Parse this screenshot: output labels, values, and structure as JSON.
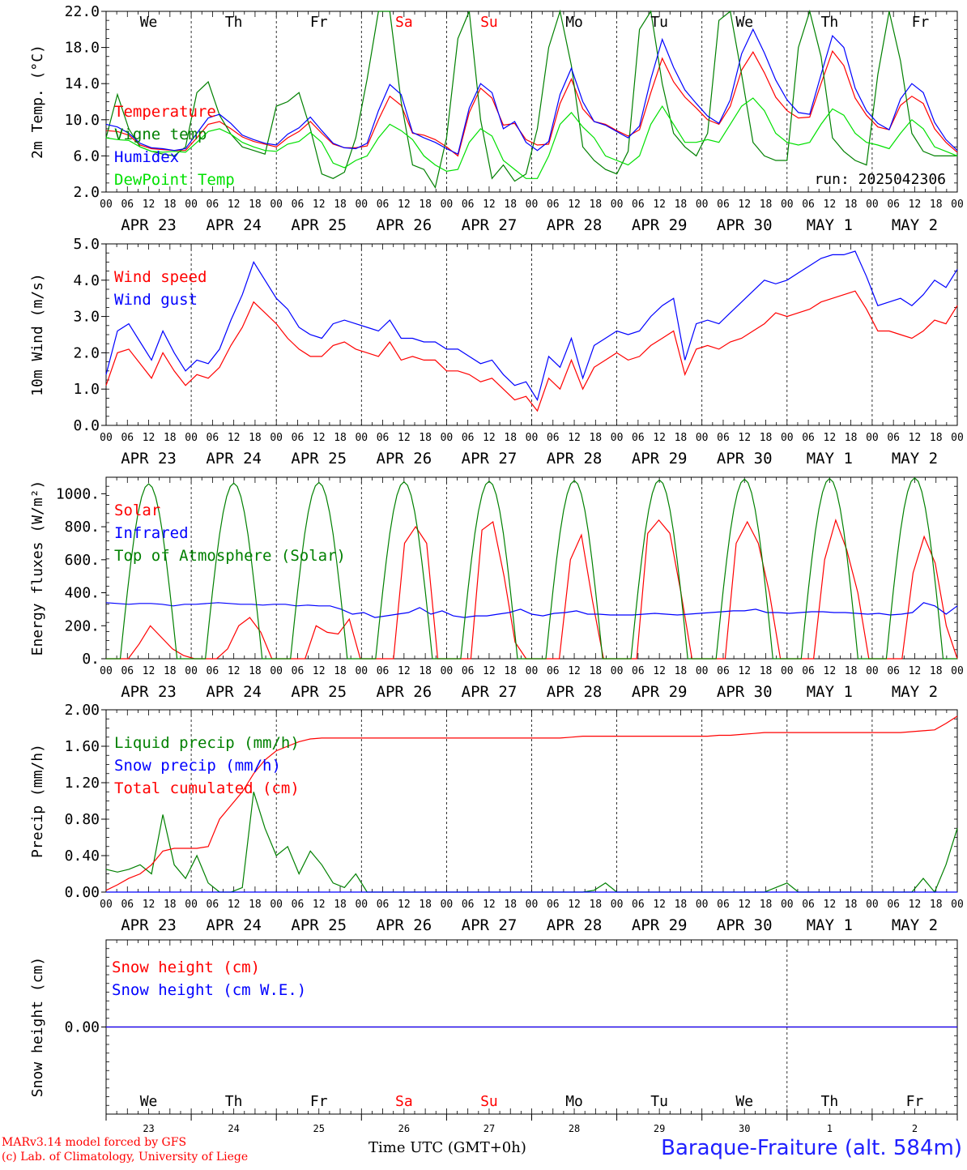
{
  "run_label": "run: 2025042306",
  "day_labels": [
    "We",
    "Th",
    "Fr",
    "Sa",
    "Su",
    "Mo",
    "Tu",
    "We",
    "Th",
    "Fr"
  ],
  "weekend_days": [
    "Sa",
    "Su"
  ],
  "hour_ticks": [
    "00",
    "06",
    "12",
    "18"
  ],
  "date_labels": [
    "APR 23",
    "APR 24",
    "APR 25",
    "APR 26",
    "APR 27",
    "APR 28",
    "APR 29",
    "APR 30",
    "MAY  1",
    "MAY  2"
  ],
  "bottom_day_numbers": [
    "23",
    "24",
    "25",
    "26",
    "27",
    "28",
    "29",
    "30",
    "1",
    "2"
  ],
  "footer": {
    "line1": "MARv3.14 model forced by GFS",
    "line2": "(c) Lab. of Climatology, University of Liege",
    "time_axis": "Time UTC (GMT+0h)",
    "station": "Baraque-Fraiture (alt. 584m)"
  },
  "colors": {
    "red": "#ff0000",
    "blue": "#0000ff",
    "green": "#008000",
    "lightgreen": "#00e000",
    "darkgreen": "#228b22"
  },
  "chart_data": [
    {
      "type": "line",
      "ylabel": "2m Temp. (°C)",
      "ylim": [
        2.0,
        22.0
      ],
      "yticks": [
        "2.0",
        "6.0",
        "10.0",
        "14.0",
        "18.0",
        "22.0"
      ],
      "x_unit": "hours since APR 23 00 UTC, 3-hourly",
      "series": [
        {
          "name": "Temperature",
          "color": "#ff0000",
          "values": [
            8.8,
            8.7,
            8.3,
            7.2,
            6.8,
            6.7,
            6.6,
            6.6,
            8.0,
            9.5,
            9.8,
            9.0,
            8.1,
            7.6,
            7.3,
            7.0,
            8.0,
            8.7,
            9.8,
            8.5,
            7.3,
            6.9,
            6.9,
            7.1,
            10.0,
            12.6,
            11.6,
            8.5,
            8.3,
            7.8,
            7.0,
            6.0,
            10.8,
            13.5,
            12.4,
            9.4,
            9.6,
            7.8,
            7.2,
            7.3,
            11.8,
            14.5,
            11.2,
            9.8,
            9.5,
            8.8,
            8.2,
            8.9,
            13.0,
            16.8,
            14.2,
            12.5,
            11.3,
            10.0,
            9.5,
            11.5,
            15.5,
            17.5,
            15.2,
            12.5,
            11.0,
            10.2,
            10.3,
            14.0,
            17.6,
            16.0,
            12.4,
            10.5,
            9.2,
            8.9,
            11.6,
            12.6,
            11.8,
            9.0,
            7.5,
            6.4
          ]
        },
        {
          "name": "Vigne temp",
          "color": "#008000",
          "values": [
            8.0,
            12.8,
            9.0,
            7.0,
            6.5,
            6.2,
            6.0,
            7.0,
            13.0,
            14.2,
            10.5,
            8.4,
            7.0,
            6.6,
            6.2,
            11.5,
            12.0,
            13.0,
            9.0,
            4.0,
            3.5,
            4.2,
            8.0,
            14.5,
            22.0,
            22.0,
            12.0,
            5.0,
            4.5,
            2.5,
            8.0,
            19.0,
            22.0,
            10.0,
            3.5,
            5.0,
            3.2,
            4.0,
            9.0,
            18.0,
            22.0,
            16.0,
            7.0,
            5.5,
            4.5,
            4.0,
            6.5,
            20.0,
            22.0,
            14.0,
            8.5,
            7.0,
            6.0,
            8.5,
            21.0,
            22.0,
            15.0,
            7.5,
            6.0,
            5.5,
            5.5,
            18.0,
            22.0,
            17.0,
            8.0,
            6.5,
            5.5,
            5.0,
            15.0,
            22.0,
            16.5,
            8.5,
            6.5,
            6.0,
            6.0,
            6.0
          ]
        },
        {
          "name": "Humidex",
          "color": "#0000ff",
          "values": [
            9.5,
            9.2,
            8.5,
            7.4,
            6.9,
            6.8,
            6.6,
            6.8,
            8.5,
            10.2,
            10.6,
            9.6,
            8.3,
            7.8,
            7.4,
            7.2,
            8.4,
            9.1,
            10.3,
            8.8,
            7.4,
            6.9,
            6.8,
            7.4,
            11.0,
            13.9,
            12.8,
            8.6,
            8.0,
            7.5,
            6.8,
            6.2,
            11.3,
            14.0,
            13.0,
            9.0,
            9.8,
            7.5,
            6.6,
            7.6,
            12.8,
            15.7,
            12.0,
            9.8,
            9.4,
            8.7,
            8.0,
            9.3,
            14.5,
            18.9,
            15.8,
            13.3,
            11.8,
            10.4,
            9.6,
            12.2,
            17.3,
            20.0,
            17.4,
            14.4,
            12.2,
            10.8,
            10.6,
            15.0,
            19.3,
            18.0,
            13.5,
            11.0,
            9.6,
            8.9,
            12.3,
            14.0,
            13.0,
            9.7,
            7.8,
            6.6
          ]
        },
        {
          "name": "DewPoint Temp",
          "color": "#00e000",
          "values": [
            8.0,
            7.8,
            7.7,
            7.0,
            6.5,
            6.4,
            6.5,
            6.4,
            7.5,
            8.7,
            9.0,
            8.4,
            7.5,
            7.0,
            6.6,
            6.5,
            7.3,
            7.6,
            8.6,
            7.5,
            5.2,
            4.7,
            5.5,
            6.0,
            8.0,
            9.5,
            8.8,
            7.8,
            6.0,
            5.0,
            4.3,
            4.5,
            7.5,
            9.0,
            8.2,
            5.5,
            4.5,
            3.5,
            3.5,
            6.0,
            9.5,
            10.8,
            9.2,
            8.0,
            6.0,
            5.5,
            5.0,
            6.0,
            9.5,
            11.5,
            9.5,
            7.5,
            7.5,
            7.8,
            7.5,
            9.5,
            11.5,
            12.4,
            11.0,
            8.5,
            7.5,
            7.2,
            7.5,
            9.5,
            11.2,
            10.5,
            8.5,
            7.5,
            7.2,
            6.8,
            8.5,
            10.0,
            9.0,
            7.0,
            6.5,
            6.0
          ]
        }
      ]
    },
    {
      "type": "line",
      "ylabel": "10m Wind (m/s)",
      "ylim": [
        0.0,
        5.0
      ],
      "yticks": [
        "0.0",
        "1.0",
        "2.0",
        "3.0",
        "4.0",
        "5.0"
      ],
      "series": [
        {
          "name": "Wind speed",
          "color": "#ff0000",
          "values": [
            1.1,
            2.0,
            2.1,
            1.7,
            1.3,
            2.0,
            1.5,
            1.1,
            1.4,
            1.3,
            1.6,
            2.2,
            2.7,
            3.4,
            3.1,
            2.8,
            2.4,
            2.1,
            1.9,
            1.9,
            2.2,
            2.3,
            2.1,
            2.0,
            1.9,
            2.3,
            1.8,
            1.9,
            1.8,
            1.8,
            1.5,
            1.5,
            1.4,
            1.2,
            1.3,
            1.0,
            0.7,
            0.8,
            0.4,
            1.3,
            1.0,
            1.8,
            1.0,
            1.6,
            1.8,
            2.0,
            1.8,
            1.9,
            2.2,
            2.4,
            2.6,
            1.4,
            2.1,
            2.2,
            2.1,
            2.3,
            2.4,
            2.6,
            2.8,
            3.1,
            3.0,
            3.1,
            3.2,
            3.4,
            3.5,
            3.6,
            3.7,
            3.2,
            2.6,
            2.6,
            2.5,
            2.4,
            2.6,
            2.9,
            2.8,
            3.3
          ]
        },
        {
          "name": "Wind gust",
          "color": "#0000ff",
          "values": [
            1.4,
            2.6,
            2.8,
            2.3,
            1.8,
            2.6,
            2.0,
            1.5,
            1.8,
            1.7,
            2.1,
            2.9,
            3.6,
            4.5,
            4.0,
            3.5,
            3.2,
            2.7,
            2.5,
            2.4,
            2.8,
            2.9,
            2.8,
            2.7,
            2.6,
            2.9,
            2.4,
            2.4,
            2.3,
            2.3,
            2.1,
            2.1,
            1.9,
            1.7,
            1.8,
            1.4,
            1.1,
            1.2,
            0.7,
            1.9,
            1.6,
            2.4,
            1.3,
            2.2,
            2.4,
            2.6,
            2.5,
            2.6,
            3.0,
            3.3,
            3.5,
            1.8,
            2.8,
            2.9,
            2.8,
            3.1,
            3.4,
            3.7,
            4.0,
            3.9,
            4.0,
            4.2,
            4.4,
            4.6,
            4.7,
            4.7,
            4.8,
            4.1,
            3.3,
            3.4,
            3.5,
            3.3,
            3.6,
            4.0,
            3.8,
            4.3
          ]
        }
      ]
    },
    {
      "type": "line",
      "ylabel": "Energy fluxes (W/m²)",
      "ylim": [
        0,
        1100
      ],
      "yticks": [
        "0.",
        "200.",
        "400.",
        "600.",
        "800.",
        "1000."
      ],
      "series": [
        {
          "name": "Solar",
          "color": "#ff0000",
          "values": [
            0,
            0,
            0,
            90,
            200,
            130,
            60,
            20,
            0,
            0,
            0,
            60,
            200,
            250,
            160,
            0,
            0,
            0,
            0,
            200,
            160,
            150,
            240,
            0,
            0,
            0,
            0,
            700,
            800,
            700,
            0,
            0,
            0,
            0,
            780,
            830,
            500,
            100,
            0,
            0,
            0,
            0,
            600,
            750,
            350,
            0,
            0,
            0,
            0,
            760,
            840,
            760,
            400,
            0,
            0,
            0,
            0,
            700,
            830,
            700,
            400,
            0,
            0,
            0,
            0,
            600,
            840,
            660,
            400,
            0,
            0,
            0,
            0,
            520,
            740,
            580,
            200,
            0
          ],
          "peaks_note": "daily maxima"
        },
        {
          "name": "Infrared",
          "color": "#0000ff",
          "values": [
            340,
            335,
            330,
            335,
            335,
            330,
            320,
            330,
            330,
            335,
            340,
            335,
            330,
            330,
            325,
            330,
            330,
            320,
            325,
            320,
            320,
            300,
            270,
            280,
            250,
            260,
            270,
            280,
            310,
            270,
            290,
            260,
            250,
            260,
            260,
            270,
            280,
            300,
            270,
            260,
            275,
            280,
            290,
            270,
            270,
            265,
            265,
            265,
            270,
            275,
            270,
            265,
            270,
            275,
            280,
            285,
            290,
            290,
            300,
            280,
            280,
            275,
            280,
            285,
            285,
            280,
            280,
            275,
            270,
            275,
            265,
            270,
            280,
            340,
            320,
            270,
            320
          ]
        },
        {
          "name": "Top of Atmosphere (Solar)",
          "color": "#008000",
          "values": [
            0,
            0,
            1060,
            0,
            0,
            0,
            1065,
            0,
            0,
            0,
            1070,
            0,
            0,
            0,
            1075,
            0,
            0,
            0,
            1080,
            0,
            0,
            0,
            1085,
            0,
            0,
            0,
            1090,
            0,
            0,
            0,
            1090,
            0,
            0,
            0,
            1095,
            0,
            0,
            0,
            1100,
            0,
            0,
            0
          ]
        }
      ]
    },
    {
      "type": "line",
      "ylabel": "Precip (mm/h)",
      "ylim": [
        0.0,
        2.0
      ],
      "yticks": [
        "0.00",
        "0.40",
        "0.80",
        "1.20",
        "1.60",
        "2.00"
      ],
      "series": [
        {
          "name": "Liquid precip (mm/h)",
          "color": "#008000",
          "values": [
            0.25,
            0.22,
            0.25,
            0.3,
            0.2,
            0.85,
            0.3,
            0.15,
            0.4,
            0.1,
            0.0,
            0.0,
            0.05,
            1.1,
            0.7,
            0.4,
            0.5,
            0.2,
            0.45,
            0.3,
            0.1,
            0.05,
            0.2,
            0.0,
            0.0,
            0.0,
            0.0,
            0.0,
            0.0,
            0.0,
            0.0,
            0.0,
            0.0,
            0.0,
            0.0,
            0.0,
            0.0,
            0.0,
            0.0,
            0.0,
            0.0,
            0.0,
            0.0,
            0.02,
            0.1,
            0.0,
            0.0,
            0.0,
            0.0,
            0.0,
            0.0,
            0.0,
            0.0,
            0.0,
            0.0,
            0.0,
            0.0,
            0.0,
            0.0,
            0.05,
            0.1,
            0.0,
            0.0,
            0.0,
            0.0,
            0.0,
            0.0,
            0.0,
            0.0,
            0.0,
            0.0,
            0.0,
            0.15,
            0.0,
            0.3,
            0.7
          ]
        },
        {
          "name": "Snow precip (mm/h)",
          "color": "#0000ff",
          "values": [
            0,
            0,
            0,
            0,
            0,
            0,
            0,
            0,
            0,
            0,
            0,
            0,
            0,
            0,
            0,
            0,
            0,
            0,
            0,
            0,
            0,
            0,
            0,
            0,
            0,
            0,
            0,
            0,
            0,
            0,
            0,
            0,
            0,
            0,
            0,
            0,
            0,
            0,
            0,
            0,
            0,
            0,
            0,
            0,
            0,
            0,
            0,
            0,
            0,
            0,
            0,
            0,
            0,
            0,
            0,
            0,
            0,
            0,
            0,
            0,
            0,
            0,
            0,
            0,
            0,
            0,
            0,
            0,
            0,
            0,
            0,
            0,
            0,
            0,
            0,
            0
          ]
        },
        {
          "name": "Total cumulated (cm)",
          "color": "#ff0000",
          "values": [
            0.02,
            0.08,
            0.15,
            0.2,
            0.3,
            0.45,
            0.48,
            0.48,
            0.48,
            0.5,
            0.8,
            0.95,
            1.1,
            1.3,
            1.45,
            1.55,
            1.6,
            1.65,
            1.68,
            1.69,
            1.69,
            1.69,
            1.69,
            1.69,
            1.69,
            1.69,
            1.69,
            1.69,
            1.69,
            1.69,
            1.69,
            1.69,
            1.69,
            1.69,
            1.69,
            1.69,
            1.69,
            1.69,
            1.69,
            1.69,
            1.69,
            1.7,
            1.71,
            1.71,
            1.71,
            1.71,
            1.71,
            1.71,
            1.71,
            1.71,
            1.71,
            1.71,
            1.71,
            1.71,
            1.72,
            1.72,
            1.73,
            1.74,
            1.75,
            1.75,
            1.75,
            1.75,
            1.75,
            1.75,
            1.75,
            1.75,
            1.75,
            1.75,
            1.75,
            1.75,
            1.75,
            1.76,
            1.77,
            1.78,
            1.85,
            1.93
          ]
        }
      ]
    },
    {
      "type": "line",
      "ylabel": "Snow height (cm)",
      "yticks": [
        "0.00"
      ],
      "series": [
        {
          "name": "Snow height (cm)",
          "color": "#ff0000",
          "values": [
            0,
            0
          ]
        },
        {
          "name": "Snow height (cm W.E.)",
          "color": "#0000ff",
          "values": [
            0,
            0
          ]
        }
      ]
    }
  ]
}
